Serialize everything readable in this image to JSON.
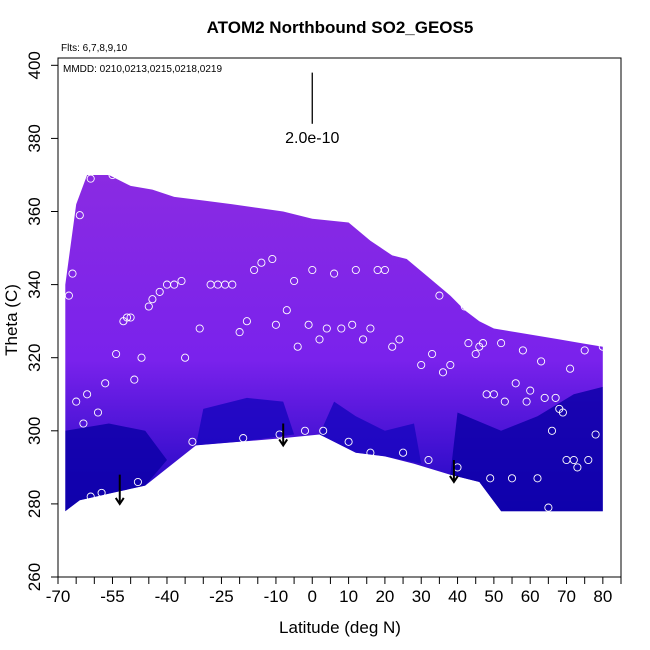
{
  "chart_data": {
    "type": "heatmap",
    "title": "ATOM2 Northbound SO2_GEOS5",
    "xlabel": "Latitude (deg N)",
    "ylabel": "Theta (C)",
    "flights_note": "Flts: 6,7,8,9,10",
    "dates_note": "MMDD: 0210,0213,0215,0218,0219",
    "scale_label": "2.0e-10",
    "xlim": [
      -70,
      85
    ],
    "ylim": [
      260,
      402
    ],
    "x_ticks": [
      -70,
      -55,
      -40,
      -25,
      -10,
      0,
      10,
      20,
      30,
      40,
      50,
      60,
      70,
      80
    ],
    "x_minor_ticks": [
      -65,
      -60,
      -50,
      -45,
      -35,
      -30,
      -20,
      -15,
      -5,
      5,
      15,
      25,
      35,
      45,
      55,
      65,
      75,
      85
    ],
    "y_ticks": [
      260,
      280,
      300,
      320,
      340,
      360,
      380,
      400
    ],
    "colors": {
      "high": "#8a2be2",
      "mid": "#7a22ec",
      "low": "#1a06c0",
      "lowest": "#0d00a8",
      "marker": "#ffffff"
    },
    "upper_boundary": [
      [
        -68,
        340
      ],
      [
        -65,
        362
      ],
      [
        -62,
        370
      ],
      [
        -56,
        370
      ],
      [
        -50,
        367
      ],
      [
        -44,
        366
      ],
      [
        -38,
        364
      ],
      [
        -30,
        363
      ],
      [
        -22,
        362
      ],
      [
        -15,
        361
      ],
      [
        -8,
        360
      ],
      [
        0,
        358
      ],
      [
        10,
        357
      ],
      [
        16,
        352
      ],
      [
        22,
        348
      ],
      [
        26,
        347
      ],
      [
        32,
        342
      ],
      [
        38,
        337
      ],
      [
        42,
        333
      ],
      [
        46,
        330
      ],
      [
        50,
        328
      ],
      [
        56,
        327
      ],
      [
        62,
        326
      ],
      [
        68,
        325
      ],
      [
        74,
        324
      ],
      [
        80,
        323
      ]
    ],
    "lower_boundary": [
      [
        -68,
        278
      ],
      [
        -64,
        281
      ],
      [
        -55,
        283
      ],
      [
        -46,
        285
      ],
      [
        -32,
        296
      ],
      [
        -20,
        297
      ],
      [
        -8,
        298
      ],
      [
        2,
        299
      ],
      [
        12,
        294
      ],
      [
        20,
        293
      ],
      [
        28,
        291
      ],
      [
        38,
        288
      ],
      [
        46,
        286
      ],
      [
        52,
        278
      ],
      [
        80,
        278
      ]
    ],
    "dark_regions": [
      [
        [
          -68,
          300
        ],
        [
          -56,
          302
        ],
        [
          -46,
          300
        ],
        [
          -40,
          292
        ],
        [
          -46,
          285
        ],
        [
          -55,
          283
        ],
        [
          -64,
          281
        ],
        [
          -68,
          278
        ]
      ],
      [
        [
          40,
          305
        ],
        [
          52,
          300
        ],
        [
          62,
          304
        ],
        [
          72,
          310
        ],
        [
          80,
          312
        ],
        [
          80,
          278
        ],
        [
          52,
          278
        ],
        [
          46,
          286
        ],
        [
          38,
          288
        ]
      ],
      [
        [
          -30,
          306
        ],
        [
          -18,
          309
        ],
        [
          -8,
          308
        ],
        [
          -5,
          299
        ],
        [
          -20,
          297
        ],
        [
          -32,
          296
        ]
      ],
      [
        [
          6,
          308
        ],
        [
          12,
          304
        ],
        [
          20,
          300
        ],
        [
          28,
          302
        ],
        [
          30,
          291
        ],
        [
          20,
          293
        ],
        [
          12,
          294
        ],
        [
          2,
          299
        ]
      ]
    ],
    "observations": [
      [
        -67,
        337
      ],
      [
        -66,
        343
      ],
      [
        -65,
        308
      ],
      [
        -64,
        359
      ],
      [
        -63,
        302
      ],
      [
        -62,
        310
      ],
      [
        -61,
        282
      ],
      [
        -61,
        369
      ],
      [
        -59,
        305
      ],
      [
        -58,
        283
      ],
      [
        -57,
        313
      ],
      [
        -55,
        370
      ],
      [
        -54,
        321
      ],
      [
        -52,
        330
      ],
      [
        -51,
        331
      ],
      [
        -50,
        331
      ],
      [
        -49,
        314
      ],
      [
        -48,
        286
      ],
      [
        -47,
        320
      ],
      [
        -45,
        334
      ],
      [
        -44,
        336
      ],
      [
        -42,
        338
      ],
      [
        -40,
        340
      ],
      [
        -38,
        340
      ],
      [
        -36,
        341
      ],
      [
        -35,
        320
      ],
      [
        -33,
        297
      ],
      [
        -31,
        328
      ],
      [
        -28,
        340
      ],
      [
        -26,
        340
      ],
      [
        -24,
        340
      ],
      [
        -22,
        340
      ],
      [
        -20,
        327
      ],
      [
        -19,
        298
      ],
      [
        -18,
        330
      ],
      [
        -16,
        344
      ],
      [
        -14,
        346
      ],
      [
        -11,
        347
      ],
      [
        -10,
        329
      ],
      [
        -9,
        299
      ],
      [
        -7,
        333
      ],
      [
        -5,
        341
      ],
      [
        -4,
        323
      ],
      [
        -2,
        300
      ],
      [
        -1,
        329
      ],
      [
        0,
        344
      ],
      [
        2,
        325
      ],
      [
        3,
        300
      ],
      [
        4,
        328
      ],
      [
        6,
        343
      ],
      [
        8,
        328
      ],
      [
        10,
        297
      ],
      [
        11,
        329
      ],
      [
        12,
        344
      ],
      [
        14,
        325
      ],
      [
        16,
        294
      ],
      [
        16,
        328
      ],
      [
        18,
        344
      ],
      [
        20,
        344
      ],
      [
        22,
        323
      ],
      [
        24,
        325
      ],
      [
        25,
        294
      ],
      [
        28,
        347
      ],
      [
        30,
        318
      ],
      [
        32,
        292
      ],
      [
        33,
        321
      ],
      [
        35,
        337
      ],
      [
        36,
        316
      ],
      [
        38,
        318
      ],
      [
        40,
        290
      ],
      [
        42,
        334
      ],
      [
        43,
        324
      ],
      [
        45,
        321
      ],
      [
        46,
        323
      ],
      [
        47,
        324
      ],
      [
        48,
        310
      ],
      [
        49,
        287
      ],
      [
        50,
        310
      ],
      [
        52,
        324
      ],
      [
        53,
        308
      ],
      [
        55,
        287
      ],
      [
        56,
        313
      ],
      [
        58,
        322
      ],
      [
        59,
        308
      ],
      [
        60,
        311
      ],
      [
        62,
        287
      ],
      [
        63,
        319
      ],
      [
        64,
        309
      ],
      [
        65,
        279
      ],
      [
        66,
        300
      ],
      [
        67,
        309
      ],
      [
        68,
        306
      ],
      [
        69,
        305
      ],
      [
        70,
        292
      ],
      [
        71,
        317
      ],
      [
        72,
        292
      ],
      [
        73,
        290
      ],
      [
        75,
        322
      ],
      [
        76,
        292
      ],
      [
        78,
        299
      ],
      [
        80,
        323
      ]
    ],
    "arrows": [
      {
        "x": -53,
        "y_from": 288,
        "y_to": 280
      },
      {
        "x": -8,
        "y_from": 302,
        "y_to": 296
      },
      {
        "x": 39,
        "y_from": 292,
        "y_to": 286
      }
    ],
    "scale_bar": {
      "x": 0,
      "y_from": 398,
      "y_to": 384
    }
  }
}
